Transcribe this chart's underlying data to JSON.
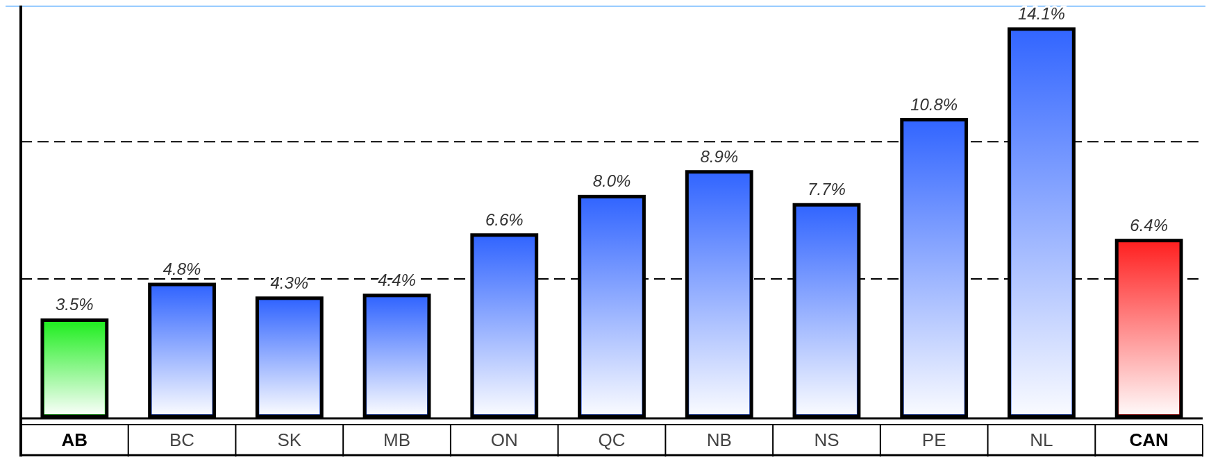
{
  "chart_data": {
    "type": "bar",
    "categories": [
      "AB",
      "BC",
      "SK",
      "MB",
      "ON",
      "QC",
      "NB",
      "NS",
      "PE",
      "NL",
      "CAN"
    ],
    "values": [
      3.5,
      4.8,
      4.3,
      4.4,
      6.6,
      8.0,
      8.9,
      7.7,
      10.8,
      14.1,
      6.4
    ],
    "value_labels": [
      "3.5%",
      "4.8%",
      "4.3%",
      "4.4%",
      "6.6%",
      "8.0%",
      "8.9%",
      "7.7%",
      "10.8%",
      "14.1%",
      "6.4%"
    ],
    "colors": [
      "#22ee22",
      "#3366ff",
      "#3366ff",
      "#3366ff",
      "#3366ff",
      "#3366ff",
      "#3366ff",
      "#3366ff",
      "#3366ff",
      "#3366ff",
      "#ff2222"
    ],
    "ref_lines": [
      {
        "axis": "y",
        "value": 5,
        "line_style": "dashed",
        "color": "#000000"
      },
      {
        "axis": "y",
        "value": 10,
        "line_style": "dashed",
        "color": "#000000"
      }
    ],
    "tick_labels": "x"
  }
}
